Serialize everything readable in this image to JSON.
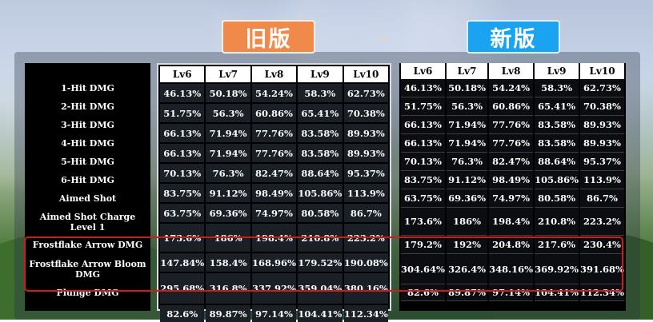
{
  "badges": {
    "old": "旧版",
    "new": "新版"
  },
  "colors": {
    "old_badge": "#f08a4b",
    "new_badge": "#1aa3f0",
    "highlight": "#d21a1a"
  },
  "columns": [
    "Lv6",
    "Lv7",
    "Lv8",
    "Lv9",
    "Lv10"
  ],
  "rows": [
    {
      "label": "1-Hit DMG",
      "old": [
        "46.13%",
        "50.18%",
        "54.24%",
        "58.3%",
        "62.73%"
      ],
      "new": [
        "46.13%",
        "50.18%",
        "54.24%",
        "58.3%",
        "62.73%"
      ]
    },
    {
      "label": "2-Hit DMG",
      "old": [
        "51.75%",
        "56.3%",
        "60.86%",
        "65.41%",
        "70.38%"
      ],
      "new": [
        "51.75%",
        "56.3%",
        "60.86%",
        "65.41%",
        "70.38%"
      ]
    },
    {
      "label": "3-Hit DMG",
      "old": [
        "66.13%",
        "71.94%",
        "77.76%",
        "83.58%",
        "89.93%"
      ],
      "new": [
        "66.13%",
        "71.94%",
        "77.76%",
        "83.58%",
        "89.93%"
      ]
    },
    {
      "label": "4-Hit DMG",
      "old": [
        "66.13%",
        "71.94%",
        "77.76%",
        "83.58%",
        "89.93%"
      ],
      "new": [
        "66.13%",
        "71.94%",
        "77.76%",
        "83.58%",
        "89.93%"
      ]
    },
    {
      "label": "5-Hit DMG",
      "old": [
        "70.13%",
        "76.3%",
        "82.47%",
        "88.64%",
        "95.37%"
      ],
      "new": [
        "70.13%",
        "76.3%",
        "82.47%",
        "88.64%",
        "95.37%"
      ]
    },
    {
      "label": "6-Hit DMG",
      "old": [
        "83.75%",
        "91.12%",
        "98.49%",
        "105.86%",
        "113.9%"
      ],
      "new": [
        "83.75%",
        "91.12%",
        "98.49%",
        "105.86%",
        "113.9%"
      ]
    },
    {
      "label": "Aimed Shot",
      "old": [
        "63.75%",
        "69.36%",
        "74.97%",
        "80.58%",
        "86.7%"
      ],
      "new": [
        "63.75%",
        "69.36%",
        "74.97%",
        "80.58%",
        "86.7%"
      ]
    },
    {
      "label": "Aimed Shot Charge Level 1",
      "old": [
        "173.6%",
        "186%",
        "198.4%",
        "210.8%",
        "223.2%"
      ],
      "new": [
        "173.6%",
        "186%",
        "198.4%",
        "210.8%",
        "223.2%"
      ]
    },
    {
      "label": "Frostflake Arrow DMG",
      "old": [
        "147.84%",
        "158.4%",
        "168.96%",
        "179.52%",
        "190.08%"
      ],
      "new": [
        "179.2%",
        "192%",
        "204.8%",
        "217.6%",
        "230.4%"
      ]
    },
    {
      "label": "Frostflake Arrow Bloom DMG",
      "old": [
        "295.68%",
        "316.8%",
        "337.92%",
        "359.04%",
        "380.16%"
      ],
      "new": [
        "304.64%",
        "326.4%",
        "348.16%",
        "369.92%",
        "391.68%"
      ]
    },
    {
      "label": "Plunge DMG",
      "old": [
        "82.6%",
        "89.87%",
        "97.14%",
        "104.41%",
        "112.34%"
      ],
      "new": [
        "82.6%",
        "89.87%",
        "97.14%",
        "104.41%",
        "112.34%"
      ]
    }
  ]
}
